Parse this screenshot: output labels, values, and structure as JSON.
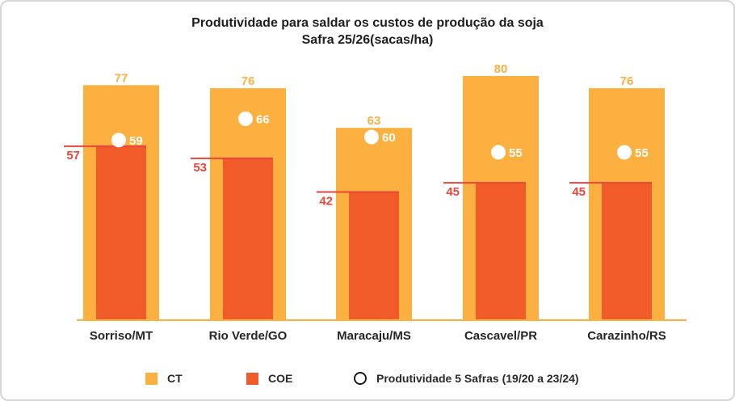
{
  "chart_data": {
    "type": "bar",
    "title": "Produtividade para saldar os custos de produção da soja",
    "subtitle": "Safra 25/26\u0001(sacas/ha)",
    "categories": [
      "Sorriso/MT",
      "Rio Verde/GO",
      "Maracaju/MS",
      "Cascavel/PR",
      "Carazinho/RS"
    ],
    "series": [
      {
        "name": "CT",
        "values": [
          77,
          76,
          63,
          80,
          76
        ]
      },
      {
        "name": "COE",
        "values": [
          57,
          53,
          42,
          45,
          45
        ]
      },
      {
        "name": "Produtividade 5 Safras (19/20 a 23/24)",
        "values": [
          59,
          66,
          60,
          55,
          55
        ]
      }
    ],
    "ylim": [
      0,
      80
    ],
    "xlabel": "",
    "ylabel": "",
    "grid": false,
    "legend_position": "bottom",
    "colors": {
      "CT": "#fbb040",
      "COE": "#f15a29",
      "productivity": "#ffffff",
      "coe_line": "#e8463a",
      "axis": "#fbb040",
      "text": "#2a2a2a"
    }
  }
}
